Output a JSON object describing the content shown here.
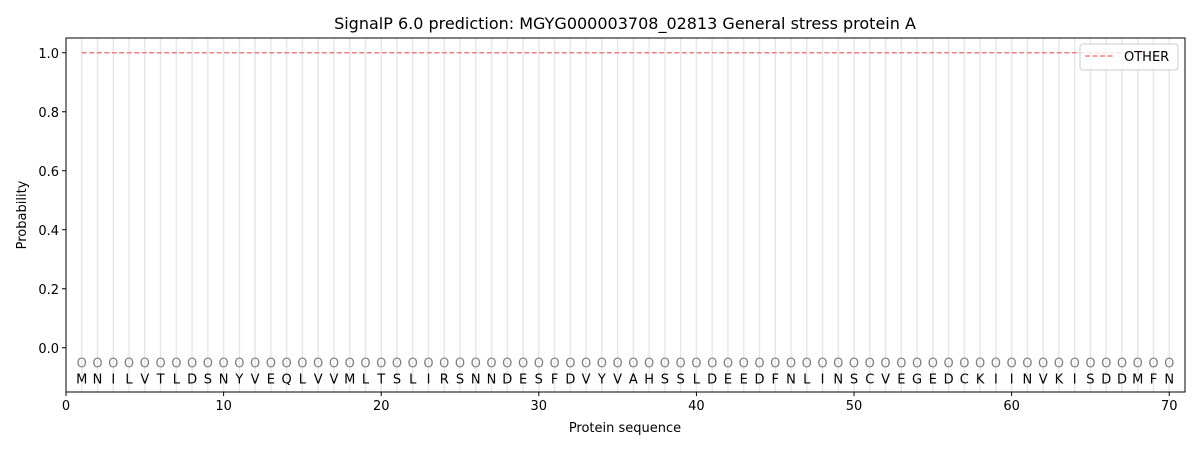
{
  "chart_data": {
    "type": "line",
    "title": "SignalP 6.0 prediction: MGYG000003708_02813 General stress protein A",
    "xlabel": "Protein sequence",
    "ylabel": "Probability",
    "xlim": [
      0,
      71
    ],
    "ylim": [
      -0.15,
      1.05
    ],
    "xticks": [
      0,
      10,
      20,
      30,
      40,
      50,
      60,
      70
    ],
    "yticks": [
      0.0,
      0.2,
      0.4,
      0.6,
      0.8,
      1.0
    ],
    "ytick_labels": [
      "0.0",
      "0.2",
      "0.4",
      "0.6",
      "0.8",
      "1.0"
    ],
    "grid": "vertical lines at each residue",
    "legend_position": "top-right",
    "sequence": "MNILVTLDSNYVEQLVVMLTSLIRSNNDESFDVYVAHSSLDEEDFNLINSCVEGEDCKIINVKISDDMFN",
    "predicted_labels": "OOOOOOOOOOOOOOOOOOOOOOOOOOOOOOOOOOOOOOOOOOOOOOOOOOOOOOOOOOOOOOOOOOOOOO",
    "series": [
      {
        "name": "OTHER",
        "color": "#f08080",
        "style": "dashed",
        "x_start": 1,
        "x_end": 70,
        "value": 1.0
      }
    ]
  }
}
